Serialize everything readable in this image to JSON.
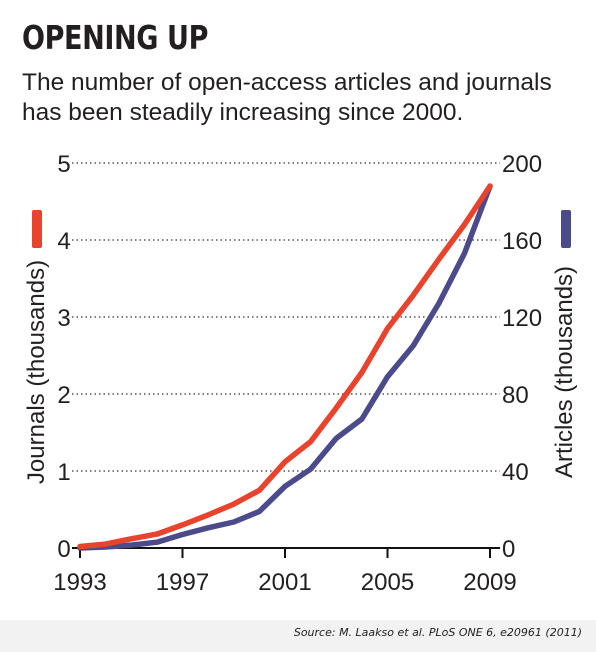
{
  "header": {
    "title": "OPENING UP",
    "subtitle_line1": "The number of open-access articles and journals",
    "subtitle_line2": "has been steadily increasing since 2000."
  },
  "footer": {
    "source": "Source: M. Laakso et al. PLoS ONE 6, e20961 (2011)"
  },
  "colors": {
    "journals": "#e8432c",
    "articles": "#4b4a8a",
    "grid": "#555555",
    "text": "#231f20"
  },
  "chart_data": {
    "type": "line",
    "x": [
      1993,
      1994,
      1995,
      1996,
      1997,
      1998,
      1999,
      2000,
      2001,
      2002,
      2003,
      2004,
      2005,
      2006,
      2007,
      2008,
      2009
    ],
    "xticks": [
      "1993",
      "1997",
      "2001",
      "2005",
      "2009"
    ],
    "xlim": [
      1993,
      2009
    ],
    "grid": true,
    "series": [
      {
        "axis": "left",
        "values": [
          0.02,
          0.05,
          0.12,
          0.18,
          0.3,
          0.43,
          0.57,
          0.75,
          1.12,
          1.38,
          1.82,
          2.28,
          2.85,
          3.28,
          3.75,
          4.2,
          4.7
        ]
      },
      {
        "axis": "right",
        "values": [
          0,
          0.5,
          1.5,
          3,
          7,
          10.5,
          13.5,
          19,
          32,
          41,
          57,
          67,
          89,
          105,
          127,
          153,
          188
        ]
      }
    ],
    "left_axis": {
      "label": "Journals (thousands)",
      "ylim": [
        0,
        5
      ],
      "ticks": [
        "0",
        "1",
        "2",
        "3",
        "4",
        "5"
      ]
    },
    "right_axis": {
      "label": "Articles (thousands)",
      "ylim": [
        0,
        200
      ],
      "ticks": [
        "0",
        "40",
        "80",
        "120",
        "160",
        "200"
      ]
    }
  }
}
